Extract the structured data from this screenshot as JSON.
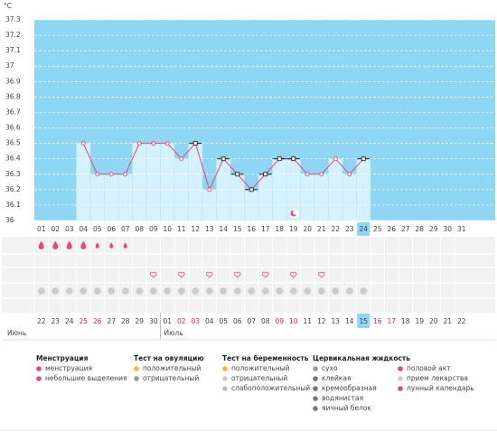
{
  "chart_data": {
    "type": "line",
    "y_label": "°C",
    "categories": [
      "01",
      "02",
      "03",
      "04",
      "05",
      "06",
      "07",
      "08",
      "09",
      "10",
      "11",
      "12",
      "13",
      "14",
      "15",
      "16",
      "17",
      "18",
      "19",
      "20",
      "21",
      "22",
      "23",
      "24",
      "25",
      "26",
      "27",
      "28",
      "29",
      "30",
      "31"
    ],
    "values": [
      null,
      null,
      null,
      36.5,
      36.3,
      36.3,
      36.3,
      36.5,
      36.5,
      36.5,
      36.4,
      36.5,
      36.2,
      36.4,
      36.3,
      36.2,
      36.3,
      36.4,
      36.4,
      36.3,
      36.3,
      36.4,
      36.3,
      36.4,
      null,
      null,
      null,
      null,
      null,
      null,
      null
    ],
    "color": "#e8457a",
    "bar_color": "#d4f1fd",
    "background": "#8fd6f4",
    "point_colors": [
      null,
      null,
      null,
      "#e8457a",
      "#e8457a",
      "#e8457a",
      "#e8457a",
      "#e8457a",
      "#e8457a",
      "#e8457a",
      "#e8457a",
      "#111111",
      "#e8457a",
      "#111111",
      "#111111",
      "#111111",
      "#111111",
      "#111111",
      "#111111",
      "#e8457a",
      "#e8457a",
      "#e8457a",
      "#e8457a",
      "#111111",
      null,
      null,
      null,
      null,
      null,
      null,
      null
    ],
    "ylim": [
      36,
      37.3
    ],
    "yticks": [
      36,
      36.1,
      36.2,
      36.3,
      36.4,
      36.5,
      36.6,
      36.7,
      36.8,
      36.9,
      37,
      37.1,
      37.2,
      37.3
    ],
    "grid": true,
    "selected": 23,
    "flow": [
      "heavy",
      "heavy",
      "heavy",
      "heavy",
      "light",
      "light",
      "light",
      null,
      null,
      null,
      null,
      null,
      null,
      null,
      null,
      null,
      null,
      null,
      null,
      null,
      null,
      null,
      null,
      null,
      null,
      null,
      null,
      null,
      null,
      null,
      null
    ],
    "intercourse": [
      false,
      false,
      false,
      false,
      false,
      false,
      false,
      false,
      true,
      false,
      true,
      false,
      true,
      false,
      true,
      false,
      true,
      false,
      true,
      false,
      true,
      false,
      false,
      false,
      false,
      false,
      false,
      false,
      false,
      false,
      false
    ],
    "lunar": [
      true,
      true,
      true,
      true,
      true,
      true,
      true,
      true,
      true,
      true,
      true,
      true,
      true,
      true,
      true,
      true,
      true,
      true,
      true,
      true,
      true,
      true,
      true,
      true,
      false,
      false,
      false,
      false,
      false,
      false,
      false
    ],
    "cycle_days": [
      "22",
      "23",
      "24",
      "25",
      "26",
      "27",
      "28",
      "29",
      "30",
      "01",
      "02",
      "03",
      "04",
      "05",
      "06",
      "07",
      "08",
      "09",
      "10",
      "11",
      "12",
      "13",
      "14",
      "15",
      "16",
      "17",
      "18",
      "19",
      "20",
      "21",
      "22"
    ],
    "weekend": [
      false,
      false,
      false,
      true,
      true,
      false,
      false,
      false,
      false,
      false,
      true,
      true,
      false,
      false,
      false,
      false,
      false,
      true,
      true,
      false,
      false,
      false,
      false,
      false,
      true,
      true,
      false,
      false,
      false,
      false,
      false
    ],
    "months": [
      {
        "label": "Июнь",
        "start": 0
      },
      {
        "label": "Июль",
        "start": 9
      }
    ]
  },
  "legend": [
    {
      "title": "Менструация",
      "items": [
        "менструация",
        "небольшие выделения"
      ]
    },
    {
      "title": "Тест на овуляцию",
      "items": [
        "положительный",
        "отрицательный"
      ]
    },
    {
      "title": "Тест на беременность",
      "items": [
        "положительный",
        "отрицательный",
        "слабоположительный"
      ]
    },
    {
      "title": "Цервикальная жидкость",
      "items": [
        "сухо",
        "клейкая",
        "кремообразная",
        "водянистая",
        "яичный белок"
      ]
    },
    {
      "items": [
        "половой акт",
        "прием лекарства",
        "лунный календарь"
      ]
    }
  ]
}
